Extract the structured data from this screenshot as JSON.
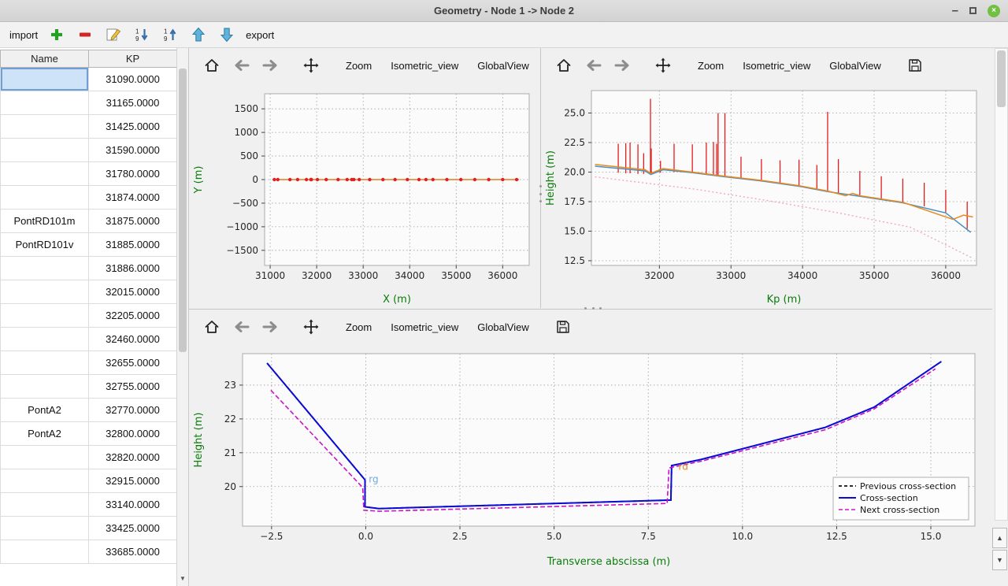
{
  "window": {
    "title": "Geometry - Node 1 -> Node 2",
    "minimize_glyph": "–",
    "close_glyph": "×"
  },
  "toolbar": {
    "import_label": "import",
    "export_label": "export"
  },
  "plot_toolbar": {
    "zoom_label": "Zoom",
    "isometric_label": "Isometric_view",
    "globalview_label": "GlobalView",
    "overflow_glyph": "»"
  },
  "scrollbar": {
    "up_glyph": "▲",
    "down_glyph": "▼"
  },
  "table": {
    "columns": [
      "Name",
      "KP"
    ],
    "selected_row": 0,
    "rows": [
      {
        "name": "",
        "kp": "31090.0000"
      },
      {
        "name": "",
        "kp": "31165.0000"
      },
      {
        "name": "",
        "kp": "31425.0000"
      },
      {
        "name": "",
        "kp": "31590.0000"
      },
      {
        "name": "",
        "kp": "31780.0000"
      },
      {
        "name": "",
        "kp": "31874.0000"
      },
      {
        "name": "PontRD101m",
        "kp": "31875.0000"
      },
      {
        "name": "PontRD101v",
        "kp": "31885.0000"
      },
      {
        "name": "",
        "kp": "31886.0000"
      },
      {
        "name": "",
        "kp": "32015.0000"
      },
      {
        "name": "",
        "kp": "32205.0000"
      },
      {
        "name": "",
        "kp": "32460.0000"
      },
      {
        "name": "",
        "kp": "32655.0000"
      },
      {
        "name": "",
        "kp": "32755.0000"
      },
      {
        "name": "PontA2",
        "kp": "32770.0000"
      },
      {
        "name": "PontA2",
        "kp": "32800.0000"
      },
      {
        "name": "",
        "kp": "32820.0000"
      },
      {
        "name": "",
        "kp": "32915.0000"
      },
      {
        "name": "",
        "kp": "33140.0000"
      },
      {
        "name": "",
        "kp": "33425.0000"
      },
      {
        "name": "",
        "kp": "33685.0000"
      }
    ]
  },
  "chart_data": {
    "plan_view": {
      "type": "line",
      "xlabel": "X (m)",
      "ylabel": "Y (m)",
      "xlim": [
        30880,
        36570
      ],
      "ylim": [
        -1820,
        1820
      ],
      "xticks": [
        {
          "v": 31000,
          "l": "31000"
        },
        {
          "v": 32000,
          "l": "32000"
        },
        {
          "v": 33000,
          "l": "33000"
        },
        {
          "v": 34000,
          "l": "34000"
        },
        {
          "v": 35000,
          "l": "35000"
        },
        {
          "v": 36000,
          "l": "36000"
        }
      ],
      "yticks": [
        {
          "v": -1500,
          "l": "−1500"
        },
        {
          "v": -1000,
          "l": "−1000"
        },
        {
          "v": -500,
          "l": "−500"
        },
        {
          "v": 0,
          "l": "0"
        },
        {
          "v": 500,
          "l": "500"
        },
        {
          "v": 1000,
          "l": "1000"
        },
        {
          "v": 1500,
          "l": "1500"
        }
      ],
      "series": [
        {
          "name": "river-axis",
          "color": "#e8791e",
          "width": 1.4,
          "points": [
            [
              31060,
              0
            ],
            [
              36350,
              0
            ]
          ]
        },
        {
          "name": "cross-section-markers",
          "color": "none",
          "marker": {
            "color": "#e02020",
            "r": 2.2
          },
          "points": [
            [
              31090,
              0
            ],
            [
              31165,
              0
            ],
            [
              31425,
              0
            ],
            [
              31590,
              0
            ],
            [
              31780,
              0
            ],
            [
              31875,
              0
            ],
            [
              31886,
              0
            ],
            [
              32015,
              0
            ],
            [
              32205,
              0
            ],
            [
              32460,
              0
            ],
            [
              32655,
              0
            ],
            [
              32755,
              0
            ],
            [
              32800,
              0
            ],
            [
              32915,
              0
            ],
            [
              33140,
              0
            ],
            [
              33425,
              0
            ],
            [
              33685,
              0
            ],
            [
              33950,
              0
            ],
            [
              34200,
              0
            ],
            [
              34350,
              0
            ],
            [
              34500,
              0
            ],
            [
              34800,
              0
            ],
            [
              35100,
              0
            ],
            [
              35400,
              0
            ],
            [
              35700,
              0
            ],
            [
              36000,
              0
            ],
            [
              36300,
              0
            ]
          ]
        }
      ]
    },
    "profile": {
      "type": "line",
      "xlabel": "Kp (m)",
      "ylabel": "Height (m)",
      "xlim": [
        31050,
        36430
      ],
      "ylim": [
        12.1,
        26.9
      ],
      "xticks": [
        {
          "v": 32000,
          "l": "32000"
        },
        {
          "v": 33000,
          "l": "33000"
        },
        {
          "v": 34000,
          "l": "34000"
        },
        {
          "v": 35000,
          "l": "35000"
        },
        {
          "v": 36000,
          "l": "36000"
        }
      ],
      "yticks": [
        {
          "v": 12.5,
          "l": "12.5"
        },
        {
          "v": 15.0,
          "l": "15.0"
        },
        {
          "v": 17.5,
          "l": "17.5"
        },
        {
          "v": 20.0,
          "l": "20.0"
        },
        {
          "v": 22.5,
          "l": "22.5"
        },
        {
          "v": 25.0,
          "l": "25.0"
        }
      ],
      "vline_color": "#e51c1c",
      "vlines": [
        [
          31425,
          19.95,
          22.4
        ],
        [
          31530,
          19.9,
          22.45
        ],
        [
          31590,
          19.9,
          22.5
        ],
        [
          31700,
          19.85,
          22.35
        ],
        [
          31780,
          19.85,
          21.6
        ],
        [
          31875,
          19.8,
          26.2
        ],
        [
          31886,
          19.8,
          22.0
        ],
        [
          32015,
          19.95,
          20.95
        ],
        [
          32205,
          20.0,
          22.4
        ],
        [
          32460,
          19.95,
          22.35
        ],
        [
          32655,
          19.8,
          22.5
        ],
        [
          32755,
          19.75,
          22.55
        ],
        [
          32800,
          19.7,
          22.4
        ],
        [
          32820,
          19.7,
          25.0
        ],
        [
          32915,
          19.65,
          25.0
        ],
        [
          33140,
          19.45,
          21.3
        ],
        [
          33425,
          19.25,
          21.1
        ],
        [
          33685,
          19.05,
          21.0
        ],
        [
          33950,
          18.8,
          21.05
        ],
        [
          34200,
          18.55,
          20.6
        ],
        [
          34350,
          18.35,
          25.1
        ],
        [
          34500,
          18.2,
          21.1
        ],
        [
          34800,
          17.95,
          20.1
        ],
        [
          35100,
          17.65,
          19.65
        ],
        [
          35400,
          17.4,
          19.45
        ],
        [
          35700,
          17.1,
          19.1
        ],
        [
          36000,
          16.6,
          18.5
        ],
        [
          36300,
          15.2,
          17.5
        ]
      ],
      "series": [
        {
          "name": "bed-trend",
          "color": "#f4a7bb",
          "width": 1.4,
          "dash": "2,3",
          "points": [
            [
              31100,
              19.6
            ],
            [
              32500,
              18.55
            ],
            [
              33500,
              17.6
            ],
            [
              34500,
              16.55
            ],
            [
              35500,
              15.35
            ],
            [
              36380,
              12.7
            ]
          ]
        },
        {
          "name": "left-bank",
          "color": "#4a90c4",
          "width": 1.5,
          "points": [
            [
              31100,
              20.5
            ],
            [
              31800,
              20.1
            ],
            [
              31880,
              19.8
            ],
            [
              32050,
              20.2
            ],
            [
              32460,
              19.95
            ],
            [
              32915,
              19.6
            ],
            [
              33425,
              19.25
            ],
            [
              33950,
              18.8
            ],
            [
              34350,
              18.35
            ],
            [
              34800,
              17.95
            ],
            [
              35400,
              17.4
            ],
            [
              36000,
              16.55
            ],
            [
              36350,
              14.9
            ]
          ]
        },
        {
          "name": "right-bank",
          "color": "#e8891d",
          "width": 1.5,
          "points": [
            [
              31100,
              20.65
            ],
            [
              31800,
              20.2
            ],
            [
              31880,
              19.9
            ],
            [
              32050,
              20.3
            ],
            [
              32460,
              20.0
            ],
            [
              32915,
              19.65
            ],
            [
              33425,
              19.3
            ],
            [
              33950,
              18.85
            ],
            [
              34350,
              18.4
            ],
            [
              34600,
              18.0
            ],
            [
              34700,
              18.2
            ],
            [
              34800,
              18.0
            ],
            [
              35400,
              17.45
            ],
            [
              36100,
              16.0
            ],
            [
              36250,
              16.35
            ],
            [
              36380,
              16.2
            ]
          ]
        }
      ]
    },
    "cross_section": {
      "type": "line",
      "xlabel": "Transverse abscissa (m)",
      "ylabel": "Height (m)",
      "xlim": [
        -3.27,
        16.17
      ],
      "ylim": [
        18.83,
        23.93
      ],
      "xticks": [
        {
          "v": -2.5,
          "l": "−2.5"
        },
        {
          "v": 0.0,
          "l": "0.0"
        },
        {
          "v": 2.5,
          "l": "2.5"
        },
        {
          "v": 5.0,
          "l": "5.0"
        },
        {
          "v": 7.5,
          "l": "7.5"
        },
        {
          "v": 10.0,
          "l": "10.0"
        },
        {
          "v": 12.5,
          "l": "12.5"
        },
        {
          "v": 15.0,
          "l": "15.0"
        }
      ],
      "yticks": [
        {
          "v": 20,
          "l": "20"
        },
        {
          "v": 21,
          "l": "21"
        },
        {
          "v": 22,
          "l": "22"
        },
        {
          "v": 23,
          "l": "23"
        }
      ],
      "series": [
        {
          "name": "previous-cross-section",
          "color": "#111111",
          "width": 1.8,
          "dash": "5,3",
          "points": [
            [
              -2.62,
              23.65
            ],
            [
              -0.02,
              20.2
            ],
            [
              -0.02,
              19.4
            ],
            [
              0.35,
              19.35
            ],
            [
              8.1,
              19.6
            ],
            [
              8.12,
              20.62
            ],
            [
              8.9,
              20.8
            ],
            [
              12.2,
              21.75
            ],
            [
              13.5,
              22.35
            ],
            [
              15.28,
              23.7
            ]
          ]
        },
        {
          "name": "cross-section",
          "color": "#0b0bd6",
          "width": 2,
          "points": [
            [
              -2.62,
              23.65
            ],
            [
              -0.02,
              20.2
            ],
            [
              -0.02,
              19.4
            ],
            [
              0.35,
              19.35
            ],
            [
              8.1,
              19.6
            ],
            [
              8.12,
              20.62
            ],
            [
              8.9,
              20.8
            ],
            [
              12.2,
              21.75
            ],
            [
              13.5,
              22.35
            ],
            [
              15.28,
              23.7
            ]
          ]
        },
        {
          "name": "next-cross-section",
          "color": "#c913c9",
          "width": 1.6,
          "dash": "6,3",
          "points": [
            [
              -2.52,
              22.85
            ],
            [
              -0.08,
              19.97
            ],
            [
              -0.05,
              19.3
            ],
            [
              0.35,
              19.27
            ],
            [
              8.0,
              19.5
            ],
            [
              8.05,
              20.55
            ],
            [
              8.9,
              20.75
            ],
            [
              12.2,
              21.68
            ],
            [
              13.5,
              22.3
            ],
            [
              15.12,
              23.48
            ]
          ]
        }
      ],
      "texts": [
        {
          "x": 0.08,
          "y": 20.12,
          "label": "rg",
          "color": "#6fa8dc"
        },
        {
          "x": 8.3,
          "y": 20.5,
          "label": "rd",
          "color": "#e8821e"
        }
      ],
      "legend": {
        "items": [
          {
            "label": "Previous cross-section",
            "color": "#111111",
            "dash": "4,3",
            "width": 1.8
          },
          {
            "label": "Cross-section",
            "color": "#0b0bd6",
            "width": 2
          },
          {
            "label": "Next cross-section",
            "color": "#c913c9",
            "dash": "5,3",
            "width": 1.6
          }
        ]
      }
    }
  }
}
